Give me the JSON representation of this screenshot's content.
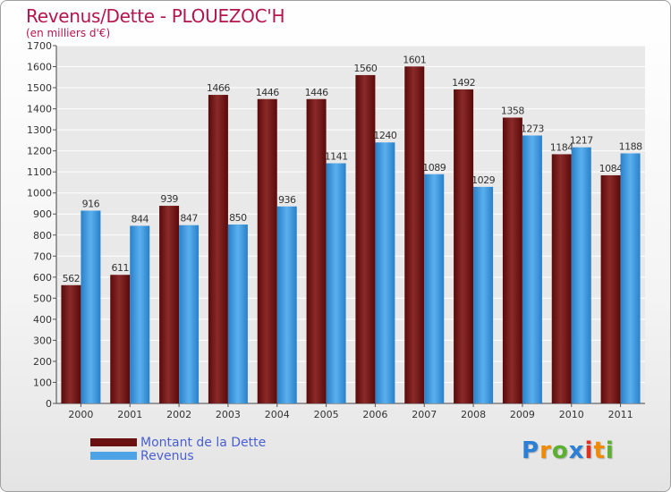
{
  "title": "Revenus/Dette - PLOUEZOC'H",
  "subtitle": "(en milliers d'€)",
  "logo": {
    "text": "Proxiti",
    "letters": [
      "P",
      "r",
      "o",
      "x",
      "i",
      "t",
      "i"
    ]
  },
  "colors": {
    "dette": "#7a1a1a",
    "revenus": "#4ca3e6",
    "title": "#b5154f",
    "legend_text": "#4a5fd0"
  },
  "chart_data": {
    "type": "bar",
    "categories": [
      "2000",
      "2001",
      "2002",
      "2003",
      "2004",
      "2005",
      "2006",
      "2007",
      "2008",
      "2009",
      "2010",
      "2011"
    ],
    "series": [
      {
        "name": "Montant de la Dette",
        "values": [
          562,
          611,
          939,
          1466,
          1446,
          1446,
          1560,
          1601,
          1492,
          1358,
          1184,
          1084
        ]
      },
      {
        "name": "Revenus",
        "values": [
          916,
          844,
          847,
          850,
          936,
          1141,
          1240,
          1089,
          1029,
          1273,
          1217,
          1188
        ]
      }
    ],
    "ylim": [
      0,
      1700
    ],
    "yticks": [
      0,
      100,
      200,
      300,
      400,
      500,
      600,
      700,
      800,
      900,
      1000,
      1100,
      1200,
      1300,
      1400,
      1500,
      1600,
      1700
    ],
    "grid": true,
    "legend": "bottom-left"
  }
}
